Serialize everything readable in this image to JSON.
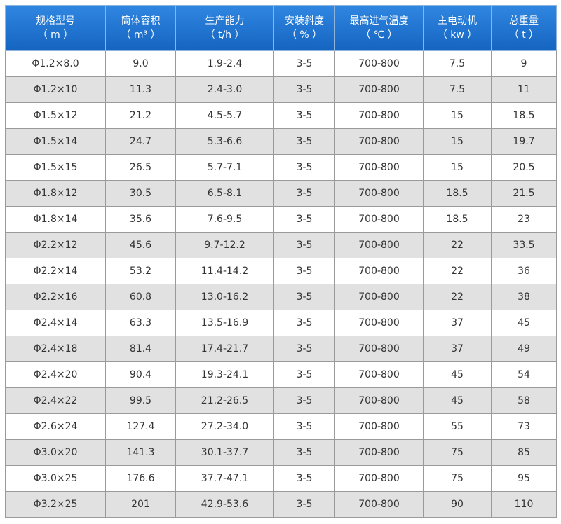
{
  "table": {
    "header": [
      {
        "name": "规格型号",
        "unit": "（ m ）"
      },
      {
        "name": "筒体容积",
        "unit": "（ m³ ）"
      },
      {
        "name": "生产能力",
        "unit": "（ t/h ）"
      },
      {
        "name": "安装斜度",
        "unit": "（ % ）"
      },
      {
        "name": "最高进气温度",
        "unit": "（ ℃ ）"
      },
      {
        "name": "主电动机",
        "unit": "（ kw ）"
      },
      {
        "name": "总重量",
        "unit": "（ t ）"
      }
    ],
    "rows": [
      [
        "Φ1.2×8.0",
        "9.0",
        "1.9-2.4",
        "3-5",
        "700-800",
        "7.5",
        "9"
      ],
      [
        "Φ1.2×10",
        "11.3",
        "2.4-3.0",
        "3-5",
        "700-800",
        "7.5",
        "11"
      ],
      [
        "Φ1.5×12",
        "21.2",
        "4.5-5.7",
        "3-5",
        "700-800",
        "15",
        "18.5"
      ],
      [
        "Φ1.5×14",
        "24.7",
        "5.3-6.6",
        "3-5",
        "700-800",
        "15",
        "19.7"
      ],
      [
        "Φ1.5×15",
        "26.5",
        "5.7-7.1",
        "3-5",
        "700-800",
        "15",
        "20.5"
      ],
      [
        "Φ1.8×12",
        "30.5",
        "6.5-8.1",
        "3-5",
        "700-800",
        "18.5",
        "21.5"
      ],
      [
        "Φ1.8×14",
        "35.6",
        "7.6-9.5",
        "3-5",
        "700-800",
        "18.5",
        "23"
      ],
      [
        "Φ2.2×12",
        "45.6",
        "9.7-12.2",
        "3-5",
        "700-800",
        "22",
        "33.5"
      ],
      [
        "Φ2.2×14",
        "53.2",
        "11.4-14.2",
        "3-5",
        "700-800",
        "22",
        "36"
      ],
      [
        "Φ2.2×16",
        "60.8",
        "13.0-16.2",
        "3-5",
        "700-800",
        "22",
        "38"
      ],
      [
        "Φ2.4×14",
        "63.3",
        "13.5-16.9",
        "3-5",
        "700-800",
        "37",
        "45"
      ],
      [
        "Φ2.4×18",
        "81.4",
        "17.4-21.7",
        "3-5",
        "700-800",
        "37",
        "49"
      ],
      [
        "Φ2.4×20",
        "90.4",
        "19.3-24.1",
        "3-5",
        "700-800",
        "45",
        "54"
      ],
      [
        "Φ2.4×22",
        "99.5",
        "21.2-26.5",
        "3-5",
        "700-800",
        "45",
        "58"
      ],
      [
        "Φ2.6×24",
        "127.4",
        "27.2-34.0",
        "3-5",
        "700-800",
        "55",
        "73"
      ],
      [
        "Φ3.0×20",
        "141.3",
        "30.1-37.7",
        "3-5",
        "700-800",
        "75",
        "85"
      ],
      [
        "Φ3.0×25",
        "176.6",
        "37.7-47.1",
        "3-5",
        "700-800",
        "75",
        "95"
      ],
      [
        "Φ3.2×25",
        "201",
        "42.9-53.6",
        "3-5",
        "700-800",
        "90",
        "110"
      ]
    ]
  }
}
